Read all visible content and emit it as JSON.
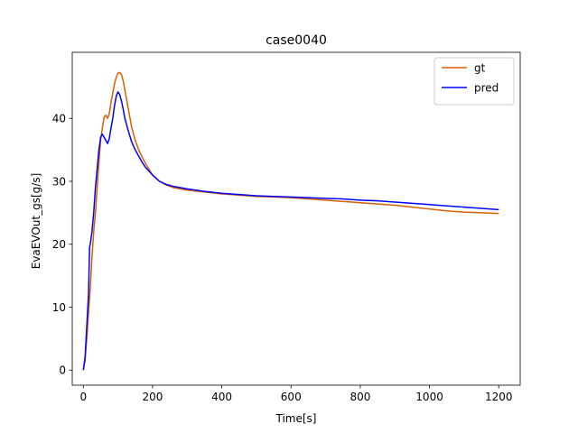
{
  "chart_data": {
    "type": "line",
    "title": "case0040",
    "xlabel": "Time[s]",
    "ylabel": "EvaEVOut_gs[g/s]",
    "xlim": [
      -32,
      1262
    ],
    "ylim": [
      -2.4,
      50.5
    ],
    "xticks": [
      0,
      200,
      400,
      600,
      800,
      1000,
      1200
    ],
    "yticks": [
      0,
      10,
      20,
      30,
      40
    ],
    "grid": false,
    "legend_position": "top-right",
    "series": [
      {
        "name": "gt",
        "color": "#d95f02",
        "x": [
          0,
          5,
          10,
          15,
          20,
          25,
          30,
          35,
          40,
          45,
          50,
          55,
          60,
          65,
          70,
          75,
          80,
          85,
          90,
          95,
          100,
          105,
          110,
          115,
          120,
          130,
          140,
          150,
          160,
          170,
          180,
          200,
          220,
          240,
          260,
          280,
          300,
          350,
          400,
          450,
          500,
          550,
          600,
          650,
          700,
          750,
          800,
          850,
          900,
          950,
          1000,
          1050,
          1100,
          1150,
          1200
        ],
        "y": [
          0,
          1.5,
          5,
          9,
          13,
          18,
          22,
          25,
          29,
          33,
          36.5,
          38.5,
          40.2,
          40.5,
          40.0,
          40.8,
          42.5,
          44,
          45.5,
          46.5,
          47.2,
          47.3,
          47.0,
          46.0,
          44.5,
          41.5,
          38.5,
          36.5,
          35.0,
          33.8,
          32.8,
          31.0,
          30.0,
          29.4,
          29.0,
          28.8,
          28.6,
          28.3,
          28.0,
          27.8,
          27.6,
          27.5,
          27.4,
          27.2,
          27.0,
          26.8,
          26.6,
          26.4,
          26.2,
          25.9,
          25.6,
          25.3,
          25.1,
          25.0,
          24.9
        ]
      },
      {
        "name": "pred",
        "color": "#0000ff",
        "x": [
          0,
          5,
          10,
          15,
          18,
          20,
          25,
          30,
          35,
          40,
          45,
          50,
          55,
          60,
          65,
          70,
          75,
          80,
          85,
          90,
          95,
          100,
          105,
          110,
          115,
          120,
          130,
          140,
          150,
          160,
          170,
          180,
          200,
          220,
          240,
          260,
          280,
          300,
          350,
          400,
          450,
          500,
          550,
          600,
          650,
          700,
          750,
          800,
          850,
          900,
          950,
          1000,
          1050,
          1100,
          1150,
          1200
        ],
        "y": [
          0,
          2,
          7,
          12,
          19.5,
          20,
          22,
          25,
          29,
          32,
          35,
          37,
          37.5,
          37.0,
          36.5,
          36.0,
          36.8,
          38.5,
          40,
          42,
          43.5,
          44.2,
          43.8,
          42.8,
          41.5,
          40.0,
          38.0,
          36.2,
          35.0,
          34.0,
          33.0,
          32.2,
          31.0,
          30.0,
          29.5,
          29.2,
          29.0,
          28.8,
          28.4,
          28.1,
          27.9,
          27.7,
          27.6,
          27.5,
          27.4,
          27.3,
          27.2,
          27.0,
          26.9,
          26.7,
          26.5,
          26.3,
          26.1,
          25.9,
          25.7,
          25.5
        ]
      }
    ]
  }
}
